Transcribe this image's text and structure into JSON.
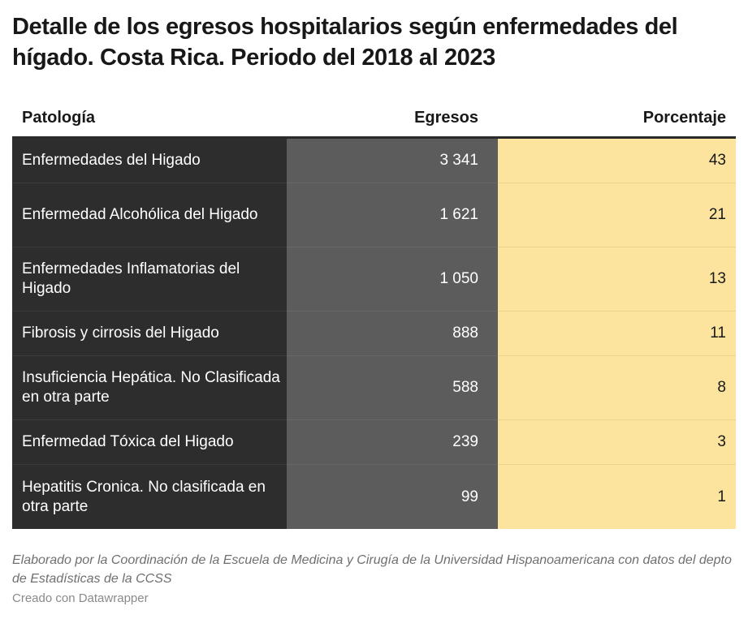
{
  "title": "Detalle de los egresos hospitalarios según enfermedades del hígado. Costa Rica. Periodo del 2018 al 2023",
  "colors": {
    "pathology_column": "#2d2d2d",
    "egresos_column": "#5c5c5c",
    "percentage_column": "#fde49e"
  },
  "chart_data": {
    "type": "table",
    "title": "Detalle de los egresos hospitalarios según enfermedades del hígado. Costa Rica. Periodo del 2018 al 2023",
    "columns": [
      "Patología",
      "Egresos",
      "Porcentaje"
    ],
    "rows": [
      {
        "patologia": "Enfermedades del Higado",
        "egresos": "3 341",
        "porcentaje": "43"
      },
      {
        "patologia": "Enfermedad Alcohólica del Higado",
        "egresos": "1 621",
        "porcentaje": "21"
      },
      {
        "patologia": "Enfermedades Inflamatorias del Higado",
        "egresos": "1 050",
        "porcentaje": "13"
      },
      {
        "patologia": "Fibrosis y cirrosis del Higado",
        "egresos": "888",
        "porcentaje": "11"
      },
      {
        "patologia": "Insuficiencia Hepática. No Clasificada en otra parte",
        "egresos": "588",
        "porcentaje": "8"
      },
      {
        "patologia": "Enfermedad Tóxica del Higado",
        "egresos": "239",
        "porcentaje": "3"
      },
      {
        "patologia": "Hepatitis Cronica. No clasificada en otra parte",
        "egresos": "99",
        "porcentaje": "1"
      }
    ]
  },
  "notes": "Elaborado por la Coordinación de la Escuela de Medicina y Cirugía de la Universidad Hispanoamericana con datos del depto de Estadísticas de la CCSS",
  "credit": "Creado con Datawrapper"
}
